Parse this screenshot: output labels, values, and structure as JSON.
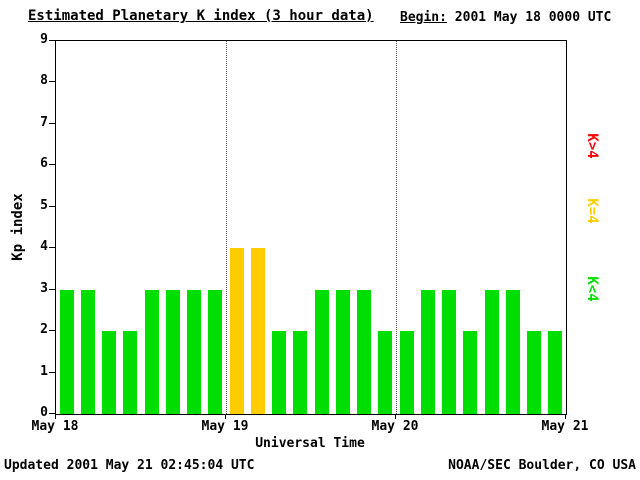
{
  "title": "Estimated Planetary K index (3 hour data)",
  "begin": {
    "label": "Begin:",
    "value": "2001 May 18 0000 UTC"
  },
  "footer": {
    "updated": "Updated 2001 May 21 02:45:04 UTC",
    "source": "NOAA/SEC Boulder, CO USA"
  },
  "legend": [
    {
      "label": "K>4",
      "color": "#ff0000"
    },
    {
      "label": "K=4",
      "color": "#ffcc00"
    },
    {
      "label": "K<4",
      "color": "#00dd00"
    }
  ],
  "chart_data": {
    "type": "bar",
    "title": "Estimated Planetary K index (3 hour data)",
    "xlabel": "Universal Time",
    "ylabel": "Kp index",
    "ylim": [
      0,
      9
    ],
    "y_ticks": [
      0,
      1,
      2,
      3,
      4,
      5,
      6,
      7,
      8,
      9
    ],
    "x_ticks": [
      "May 18",
      "May 19",
      "May 20",
      "May 21"
    ],
    "bars_per_day": 8,
    "values": [
      3,
      3,
      2,
      2,
      3,
      3,
      3,
      3,
      4,
      4,
      2,
      2,
      3,
      3,
      3,
      2,
      2,
      3,
      3,
      2,
      3,
      3,
      2,
      2
    ],
    "color_rule": "K<4 green, K=4 yellow, K>4 red",
    "bar_colors": {
      "low": "#00dd00",
      "mid": "#ffcc00",
      "high": "#ff0000"
    },
    "grid": "dotted vertical lines at day boundaries",
    "legend_position": "right"
  }
}
